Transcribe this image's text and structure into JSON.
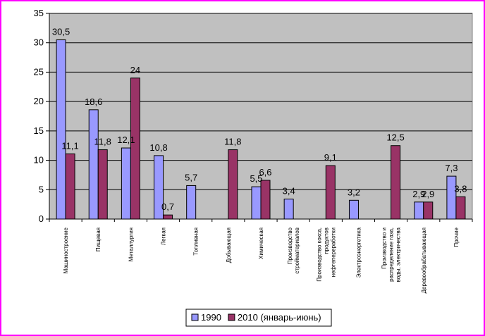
{
  "chart_data": {
    "type": "bar",
    "categories": [
      "Машиностроение",
      "Пищевая",
      "Металлургия",
      "Легкая",
      "Топливная",
      "Добывающая",
      "Химическая",
      "Производство стройматериалов",
      "Производство кокса, продуктов нефтепереработки",
      "Электроэнергетика",
      "Производство и распределение газа, воды, электричества",
      "Деревообрабатывающая",
      "Прочие"
    ],
    "category_lines": [
      [
        "Машиностроение"
      ],
      [
        "Пищевая"
      ],
      [
        "Металлургия"
      ],
      [
        "Легкая"
      ],
      [
        "Топливная"
      ],
      [
        "Добывающая"
      ],
      [
        "Химическая"
      ],
      [
        "Производство",
        "стройматериалов"
      ],
      [
        "Производство кокса,",
        "продуктов",
        "нефтепереработки"
      ],
      [
        "Электроэнергетика"
      ],
      [
        "Производство и",
        "распределение газа,",
        "воды, электричества"
      ],
      [
        "Деревообрабатывающая"
      ],
      [
        "Прочие"
      ]
    ],
    "series": [
      {
        "name": "1990",
        "color": "#9999ff",
        "values": [
          30.5,
          18.6,
          12.1,
          10.8,
          5.7,
          null,
          5.5,
          3.4,
          null,
          3.2,
          null,
          2.9,
          7.3
        ],
        "labels": [
          "30,5",
          "18,6",
          "12,1",
          "10,8",
          "5,7",
          "",
          "5,5",
          "3,4",
          "",
          "3,2",
          "",
          "2,9",
          "7,3"
        ]
      },
      {
        "name": "2010 (январь-июнь)",
        "color": "#993366",
        "values": [
          11.1,
          11.8,
          24,
          0.7,
          null,
          11.8,
          6.6,
          null,
          9.1,
          null,
          12.5,
          2.9,
          3.8
        ],
        "labels": [
          "11,1",
          "11,8",
          "24",
          "0,7",
          "",
          "11,8",
          "6,6",
          "",
          "9,1",
          "",
          "12,5",
          "2,9",
          "3,8"
        ]
      }
    ],
    "yticks": [
      0,
      5,
      10,
      15,
      20,
      25,
      30,
      35
    ],
    "ylim": [
      0,
      35
    ],
    "grid": true,
    "legend_position": "bottom-center",
    "plot_background": "#c0c0c0",
    "frame_color": "#ff00ff"
  }
}
